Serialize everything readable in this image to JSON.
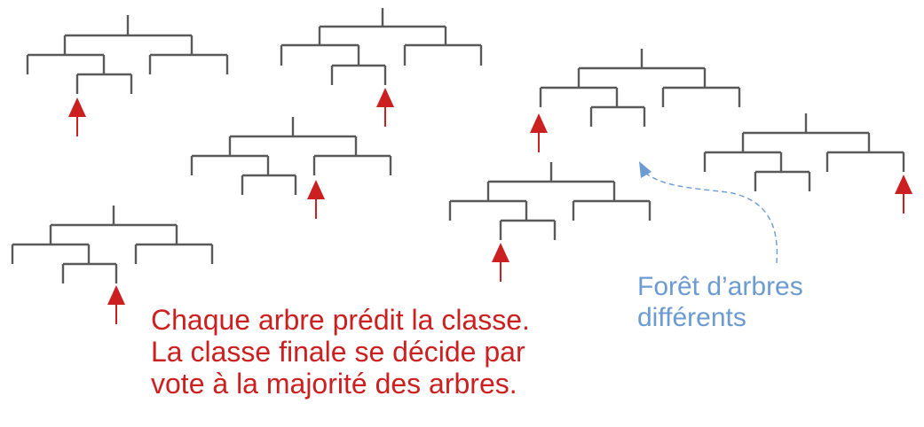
{
  "colors": {
    "tree": "#595959",
    "vote_arrow": "#cc1f1f",
    "caption_text": "#cc1f1f",
    "label_text": "#6b9bd1",
    "pointer": "#6b9bd1"
  },
  "forest": {
    "tree_count": 7,
    "votes_per_tree": 1
  },
  "caption": {
    "text": "Chaque arbre prédit la classe.\nLa classe finale se décide par\nvote à la majorité des arbres."
  },
  "forest_label": {
    "text": "Forêt d’arbres\ndifférents"
  }
}
